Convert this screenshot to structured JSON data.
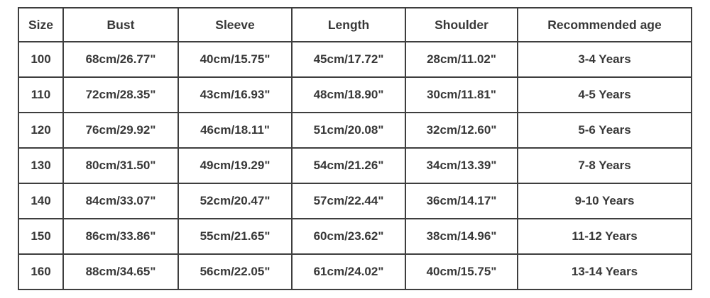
{
  "colors": {
    "border": "#3e3e3e",
    "text": "#383838",
    "background": "#ffffff"
  },
  "chart_data": {
    "type": "table",
    "title": "",
    "columns": [
      "Size",
      "Bust",
      "Sleeve",
      "Length",
      "Shoulder",
      "Recommended age"
    ],
    "rows": [
      [
        "100",
        "68cm/26.77\"",
        "40cm/15.75\"",
        "45cm/17.72\"",
        "28cm/11.02\"",
        "3-4 Years"
      ],
      [
        "110",
        "72cm/28.35\"",
        "43cm/16.93\"",
        "48cm/18.90\"",
        "30cm/11.81\"",
        "4-5 Years"
      ],
      [
        "120",
        "76cm/29.92\"",
        "46cm/18.11\"",
        "51cm/20.08\"",
        "32cm/12.60\"",
        "5-6 Years"
      ],
      [
        "130",
        "80cm/31.50\"",
        "49cm/19.29\"",
        "54cm/21.26\"",
        "34cm/13.39\"",
        "7-8 Years"
      ],
      [
        "140",
        "84cm/33.07\"",
        "52cm/20.47\"",
        "57cm/22.44\"",
        "36cm/14.17\"",
        "9-10 Years"
      ],
      [
        "150",
        "86cm/33.86\"",
        "55cm/21.65\"",
        "60cm/23.62\"",
        "38cm/14.96\"",
        "11-12 Years"
      ],
      [
        "160",
        "88cm/34.65\"",
        "56cm/22.05\"",
        "61cm/24.02\"",
        "40cm/15.75\"",
        "13-14 Years"
      ]
    ]
  }
}
